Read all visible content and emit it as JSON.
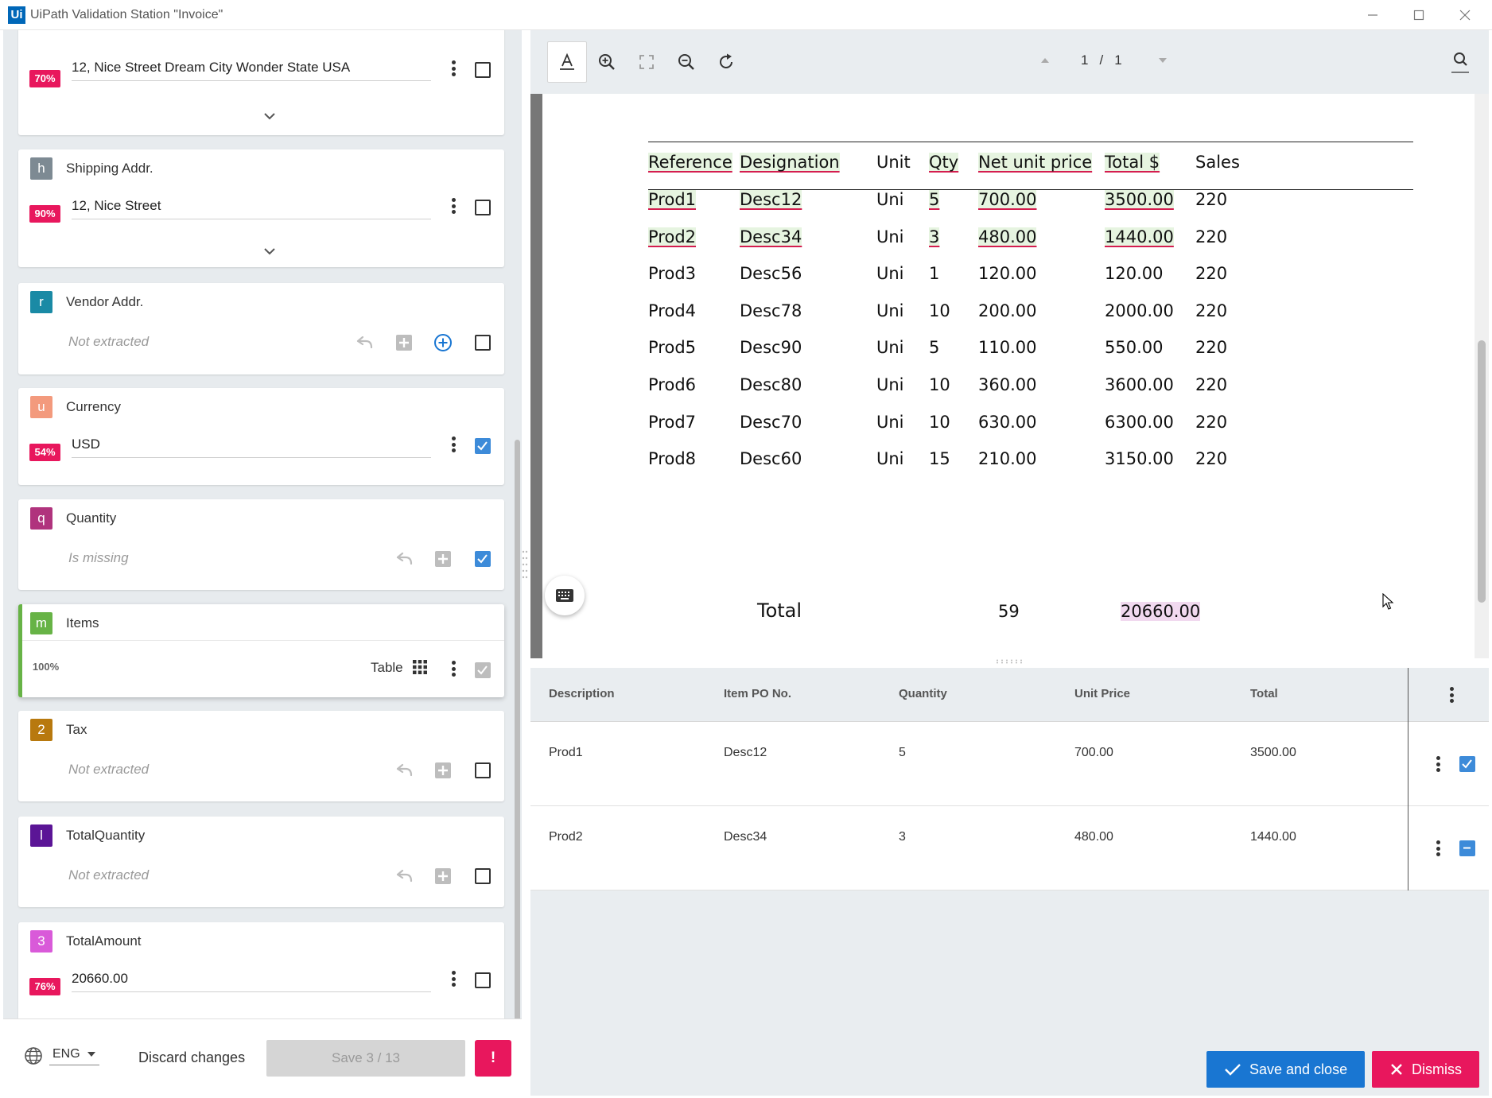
{
  "window": {
    "logo": "Ui",
    "title": "UiPath Validation Station \"Invoice\""
  },
  "fields": [
    {
      "letter": "",
      "name": "",
      "confidence": "70%",
      "value": "12, Nice Street Dream City Wonder State USA",
      "checked": false
    },
    {
      "letter": "h",
      "name": "Shipping Addr.",
      "confidence": "90%",
      "value": "12, Nice Street",
      "checked": false
    },
    {
      "letter": "r",
      "name": "Vendor Addr.",
      "status": "Not extracted",
      "checked": false
    },
    {
      "letter": "u",
      "name": "Currency",
      "confidence": "54%",
      "value": "USD",
      "checked": true
    },
    {
      "letter": "q",
      "name": "Quantity",
      "status": "Is missing",
      "checked": true
    },
    {
      "letter": "m",
      "name": "Items",
      "confidence": "100%",
      "value": "Table",
      "checked": true
    },
    {
      "letter": "2",
      "name": "Tax",
      "status": "Not extracted",
      "checked": false
    },
    {
      "letter": "l",
      "name": "TotalQuantity",
      "status": "Not extracted",
      "checked": false
    },
    {
      "letter": "3",
      "name": "TotalAmount",
      "confidence": "76%",
      "value": "20660.00",
      "checked": false
    }
  ],
  "colors": {
    "letter_h": "#7d8a93",
    "letter_r": "#1a8aa5",
    "letter_u": "#f39a7d",
    "letter_q": "#b0337d",
    "letter_m": "#67b346",
    "letter_2": "#b8790e",
    "letter_l": "#5b1596",
    "letter_3": "#d95ad9",
    "confidence_badge": "#e8175d",
    "primary": "#1976d2",
    "danger": "#e8175d"
  },
  "footer_left": {
    "language": "ENG",
    "discard_label": "Discard changes",
    "save_label": "Save 3 / 13",
    "alert_label": "!"
  },
  "toolbar": {
    "page_current": "1",
    "page_sep": "/",
    "page_total": "1"
  },
  "document": {
    "headers": [
      "Reference",
      "Designation",
      "Unit",
      "Qty",
      "Net unit price",
      "Total $",
      "Sales"
    ],
    "rows": [
      [
        "Prod1",
        "Desc12",
        "Uni",
        "5",
        "700.00",
        "3500.00",
        "220"
      ],
      [
        "Prod2",
        "Desc34",
        "Uni",
        "3",
        "480.00",
        "1440.00",
        "220"
      ],
      [
        "Prod3",
        "Desc56",
        "Uni",
        "1",
        "120.00",
        "120.00",
        "220"
      ],
      [
        "Prod4",
        "Desc78",
        "Uni",
        "10",
        "200.00",
        "2000.00",
        "220"
      ],
      [
        "Prod5",
        "Desc90",
        "Uni",
        "5",
        "110.00",
        "550.00",
        "220"
      ],
      [
        "Prod6",
        "Desc80",
        "Uni",
        "10",
        "360.00",
        "3600.00",
        "220"
      ],
      [
        "Prod7",
        "Desc70",
        "Uni",
        "10",
        "630.00",
        "6300.00",
        "220"
      ],
      [
        "Prod8",
        "Desc60",
        "Uni",
        "15",
        "210.00",
        "3150.00",
        "220"
      ]
    ],
    "total_label": "Total",
    "total_qty": "59",
    "total_amount": "20660.00"
  },
  "items_table": {
    "headers": [
      "Description",
      "Item PO No.",
      "Quantity",
      "Unit Price",
      "Total"
    ],
    "rows": [
      {
        "cells": [
          "Prod1",
          "Desc12",
          "5",
          "700.00",
          "3500.00"
        ],
        "state": "checked"
      },
      {
        "cells": [
          "Prod2",
          "Desc34",
          "3",
          "480.00",
          "1440.00"
        ],
        "state": "indeterminate"
      }
    ]
  },
  "footer_right": {
    "save_close_label": "Save and close",
    "dismiss_label": "Dismiss"
  }
}
